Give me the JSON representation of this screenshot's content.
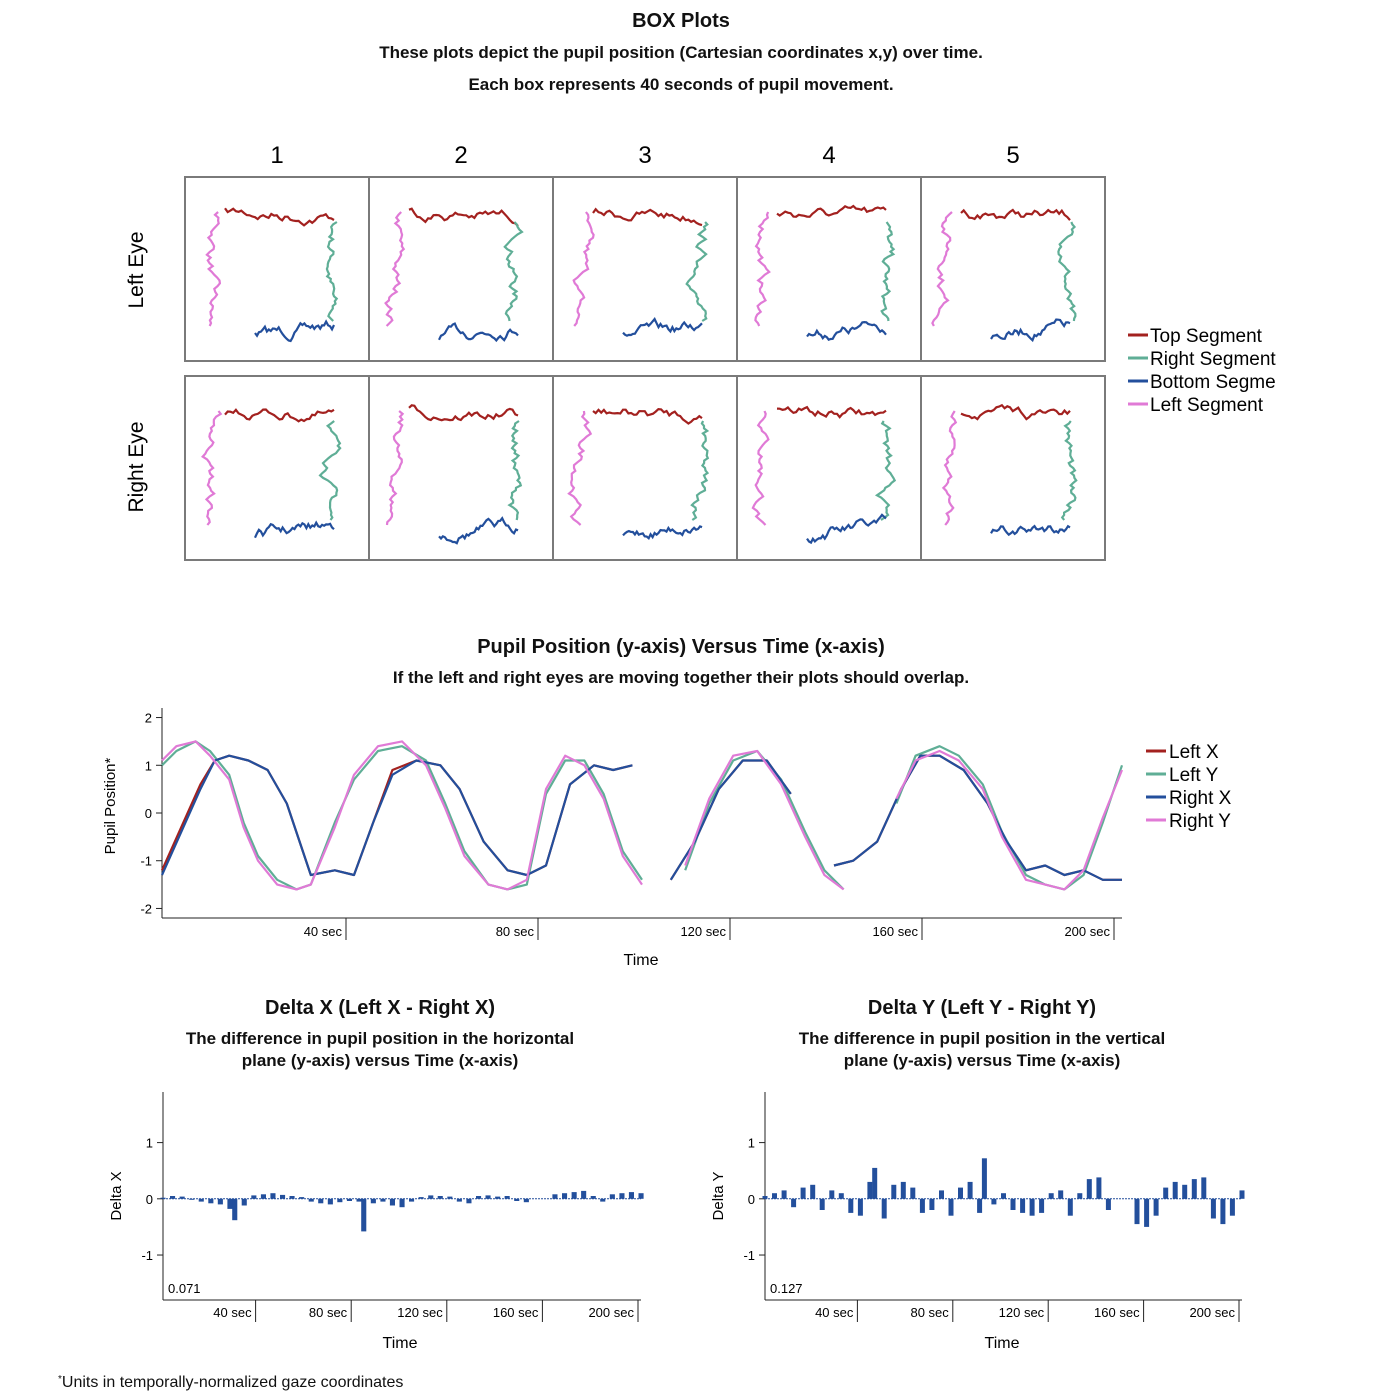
{
  "colors": {
    "top": "#a3211f",
    "right": "#5fae96",
    "bottom": "#234f9c",
    "left": "#e07ad6",
    "left_x": "#a3211f",
    "left_y": "#5fae96",
    "right_x": "#234f9c",
    "right_y": "#e07ad6",
    "delta": "#234f9c",
    "frame": "#7a7a7a"
  },
  "box_section": {
    "title": "BOX Plots",
    "subtitle_1": "These plots depict the pupil position (Cartesian coordinates x,y) over time.",
    "subtitle_2": "Each box represents 40 seconds of pupil movement."
  },
  "pupil_section": {
    "title": "Pupil Position (y-axis) Versus Time (x-axis)",
    "subtitle": "If the left and right eyes are moving together their plots should overlap."
  },
  "delta_x_section": {
    "title": "Delta X (Left X - Right X)",
    "subtitle_1": "The difference in pupil position in the horizontal",
    "subtitle_2": "plane (y-axis) versus Time (x-axis)"
  },
  "delta_y_section": {
    "title": "Delta Y (Left Y - Right Y)",
    "subtitle_1": "The difference in pupil position in the vertical",
    "subtitle_2": "plane (y-axis) versus Time (x-axis)"
  },
  "footnote": {
    "mark": "*",
    "text": "Units in temporally-normalized gaze coordinates"
  },
  "chart_data": [
    {
      "type": "line",
      "title": "BOX Plots",
      "columns": [
        "1",
        "2",
        "3",
        "4",
        "5"
      ],
      "rows": [
        "Left Eye",
        "Right Eye"
      ],
      "legend": {
        "placement": "right",
        "entries": [
          "Top Segment",
          "Right Segment",
          "Bottom Segme",
          "Left Segment"
        ]
      },
      "segments": [
        "top",
        "right",
        "bottom",
        "left"
      ],
      "box_seconds": 40
    },
    {
      "type": "line",
      "title": "Pupil Position (y-axis) Versus Time (x-axis)",
      "xlabel": "Time",
      "ylabel": "Pupil Position*",
      "xlim": [
        0,
        200
      ],
      "ylim": [
        -2.2,
        2.2
      ],
      "yticks": [
        2,
        1,
        0,
        -1,
        -2
      ],
      "ytick_labels": [
        "2",
        "1",
        "0",
        "-1",
        "-2"
      ],
      "xticks": [
        40,
        80,
        120,
        160,
        200
      ],
      "xtick_labels": [
        "40 sec",
        "80 sec",
        "120 sec",
        "160 sec",
        "200 sec"
      ],
      "legend": {
        "placement": "right",
        "entries": [
          "Left X",
          "Left Y",
          "Right X",
          "Right Y"
        ]
      },
      "series": [
        {
          "name": "Left X",
          "x": [
            0,
            4,
            8,
            11,
            14,
            18,
            22,
            26,
            31,
            36,
            40,
            44,
            48,
            53,
            58,
            62,
            67,
            72,
            76,
            80,
            85,
            90,
            94,
            98,
            102,
            106,
            111,
            116,
            121,
            126,
            131,
            136,
            140,
            144,
            149,
            154,
            158,
            162,
            167,
            172,
            176,
            180,
            184,
            188,
            192,
            196,
            200
          ],
          "y": [
            -1.2,
            -0.3,
            0.6,
            1.1,
            1.2,
            1.1,
            0.9,
            0.2,
            -1.3,
            -1.2,
            -1.3,
            -0.2,
            0.9,
            1.1,
            1.0,
            0.5,
            -0.6,
            -1.2,
            -1.3,
            -1.1,
            0.6,
            1.0,
            0.9,
            1.0,
            null,
            -1.4,
            -0.6,
            0.5,
            1.1,
            1.1,
            0.4,
            null,
            -1.1,
            -1.0,
            -0.6,
            0.5,
            1.2,
            1.2,
            0.9,
            0.2,
            -0.6,
            -1.2,
            -1.1,
            -1.3,
            -1.2,
            -1.4,
            -1.4
          ]
        },
        {
          "name": "Left Y",
          "x": [
            0,
            3,
            7,
            10,
            14,
            17,
            20,
            24,
            28,
            31,
            36,
            40,
            45,
            50,
            55,
            59,
            63,
            68,
            72,
            76,
            80,
            84,
            88,
            92,
            96,
            100,
            104,
            109,
            114,
            119,
            124,
            129,
            134,
            138,
            142,
            148,
            153,
            157,
            162,
            166,
            171,
            175,
            180,
            184,
            188,
            192,
            196,
            200
          ],
          "y": [
            1.0,
            1.3,
            1.5,
            1.3,
            0.8,
            -0.2,
            -0.9,
            -1.4,
            -1.6,
            -1.5,
            -0.2,
            0.7,
            1.3,
            1.4,
            1.1,
            0.2,
            -0.8,
            -1.5,
            -1.6,
            -1.5,
            0.4,
            1.1,
            1.1,
            0.4,
            -0.8,
            -1.4,
            null,
            -1.2,
            0.2,
            1.1,
            1.3,
            0.7,
            -0.4,
            -1.2,
            -1.6,
            null,
            0.2,
            1.2,
            1.4,
            1.2,
            0.6,
            -0.4,
            -1.3,
            -1.5,
            -1.6,
            -1.3,
            -0.2,
            1.0
          ]
        },
        {
          "name": "Right X",
          "x": [
            0,
            4,
            8,
            11,
            14,
            18,
            22,
            26,
            31,
            36,
            40,
            44,
            48,
            53,
            58,
            62,
            67,
            72,
            76,
            80,
            85,
            90,
            94,
            98,
            102,
            106,
            111,
            116,
            121,
            126,
            131,
            136,
            140,
            144,
            149,
            154,
            158,
            162,
            167,
            172,
            176,
            180,
            184,
            188,
            192,
            196,
            200
          ],
          "y": [
            -1.3,
            -0.4,
            0.5,
            1.1,
            1.2,
            1.1,
            0.9,
            0.2,
            -1.3,
            -1.2,
            -1.3,
            -0.2,
            0.8,
            1.1,
            1.0,
            0.5,
            -0.6,
            -1.2,
            -1.3,
            -1.1,
            0.6,
            1.0,
            0.9,
            1.0,
            null,
            -1.4,
            -0.6,
            0.5,
            1.1,
            1.1,
            0.4,
            null,
            -1.1,
            -1.0,
            -0.6,
            0.5,
            1.2,
            1.2,
            0.9,
            0.2,
            -0.6,
            -1.2,
            -1.1,
            -1.3,
            -1.2,
            -1.4,
            -1.4
          ]
        },
        {
          "name": "Right Y",
          "x": [
            0,
            3,
            7,
            10,
            14,
            17,
            20,
            24,
            28,
            31,
            36,
            40,
            45,
            50,
            55,
            59,
            63,
            68,
            72,
            76,
            80,
            84,
            88,
            92,
            96,
            100,
            104,
            109,
            114,
            119,
            124,
            129,
            134,
            138,
            142,
            148,
            153,
            157,
            162,
            166,
            171,
            175,
            180,
            184,
            188,
            192,
            196,
            200
          ],
          "y": [
            1.1,
            1.4,
            1.5,
            1.2,
            0.7,
            -0.3,
            -1.0,
            -1.5,
            -1.6,
            -1.5,
            -0.3,
            0.8,
            1.4,
            1.5,
            1.0,
            0.1,
            -0.9,
            -1.5,
            -1.6,
            -1.4,
            0.5,
            1.2,
            1.0,
            0.3,
            -0.9,
            -1.5,
            null,
            -1.1,
            0.3,
            1.2,
            1.3,
            0.6,
            -0.5,
            -1.3,
            -1.6,
            null,
            0.3,
            1.1,
            1.3,
            1.1,
            0.5,
            -0.5,
            -1.4,
            -1.5,
            -1.6,
            -1.2,
            -0.1,
            0.9
          ]
        }
      ]
    },
    {
      "type": "bar",
      "title": "Delta X (Left X - Right X)",
      "xlabel": "Time",
      "ylabel": "Delta X",
      "xlim": [
        0,
        200
      ],
      "ylim": [
        -1.8,
        1.9
      ],
      "yticks": [
        1,
        0,
        -1
      ],
      "ytick_labels": [
        "1",
        "0",
        "-1"
      ],
      "xticks": [
        40,
        80,
        120,
        160,
        200
      ],
      "xtick_labels": [
        "40 sec",
        "80 sec",
        "120 sec",
        "160 sec",
        "200 sec"
      ],
      "annotation": "0.071",
      "x": [
        0,
        4,
        8,
        12,
        16,
        20,
        24,
        28,
        30,
        34,
        38,
        42,
        46,
        50,
        54,
        58,
        62,
        66,
        70,
        74,
        78,
        82,
        84,
        88,
        92,
        96,
        100,
        104,
        108,
        112,
        116,
        120,
        124,
        128,
        132,
        136,
        140,
        144,
        148,
        152,
        156,
        160,
        164,
        168,
        172,
        176,
        180,
        184,
        188,
        192,
        196,
        200
      ],
      "values": [
        0.02,
        0.05,
        0.04,
        0.0,
        -0.05,
        -0.08,
        -0.1,
        -0.18,
        -0.38,
        -0.12,
        0.06,
        0.08,
        0.1,
        0.07,
        0.05,
        0.03,
        -0.05,
        -0.08,
        -0.1,
        -0.06,
        -0.04,
        -0.05,
        -0.58,
        -0.08,
        -0.05,
        -0.12,
        -0.15,
        -0.05,
        0.03,
        0.06,
        0.05,
        0.04,
        -0.05,
        -0.08,
        0.05,
        0.06,
        0.04,
        0.05,
        -0.04,
        -0.06,
        null,
        null,
        0.08,
        0.1,
        0.12,
        0.14,
        0.05,
        -0.05,
        0.08,
        0.1,
        0.12,
        0.1
      ]
    },
    {
      "type": "bar",
      "title": "Delta Y (Left Y - Right Y)",
      "xlabel": "Time",
      "ylabel": "Delta Y",
      "xlim": [
        0,
        200
      ],
      "ylim": [
        -1.8,
        1.9
      ],
      "yticks": [
        1,
        0,
        -1
      ],
      "ytick_labels": [
        "1",
        "0",
        "-1"
      ],
      "xticks": [
        40,
        80,
        120,
        160,
        200
      ],
      "xtick_labels": [
        "40 sec",
        "80 sec",
        "120 sec",
        "160 sec",
        "200 sec"
      ],
      "annotation": "0.127",
      "x": [
        0,
        4,
        8,
        12,
        16,
        20,
        24,
        28,
        32,
        36,
        40,
        44,
        46,
        50,
        54,
        58,
        62,
        66,
        70,
        74,
        78,
        82,
        86,
        90,
        92,
        96,
        100,
        104,
        108,
        112,
        116,
        120,
        124,
        128,
        132,
        136,
        140,
        144,
        148,
        152,
        156,
        160,
        164,
        168,
        172,
        176,
        180,
        184,
        188,
        192,
        196,
        200
      ],
      "values": [
        0.05,
        0.1,
        0.15,
        -0.15,
        0.2,
        0.25,
        -0.2,
        0.15,
        0.1,
        -0.25,
        -0.3,
        0.3,
        0.55,
        -0.35,
        0.25,
        0.3,
        0.2,
        -0.25,
        -0.2,
        0.15,
        -0.3,
        0.2,
        0.3,
        -0.25,
        0.72,
        -0.1,
        0.1,
        -0.2,
        -0.25,
        -0.3,
        -0.25,
        0.1,
        0.15,
        -0.3,
        0.1,
        0.35,
        0.38,
        -0.2,
        null,
        null,
        -0.45,
        -0.5,
        -0.3,
        0.2,
        0.3,
        0.25,
        0.35,
        0.38,
        -0.35,
        -0.45,
        -0.3,
        0.15
      ]
    }
  ]
}
